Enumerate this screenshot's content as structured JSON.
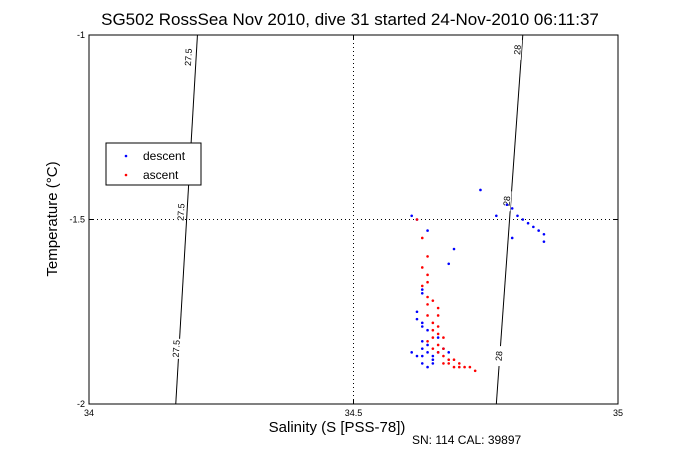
{
  "chart_data": {
    "type": "scatter",
    "title": "SG502 RossSea Nov 2010, dive 31 started 24-Nov-2010 06:11:37",
    "xlabel": "Salinity (S [PSS-78])",
    "ylabel": "Temperature (°C)",
    "xlim": [
      34,
      35
    ],
    "ylim": [
      -2,
      -1
    ],
    "x_ticks": [
      34,
      34.5,
      35
    ],
    "y_ticks": [
      -2,
      -1.5,
      -1
    ],
    "x_tick_labels": [
      "34",
      "34.5",
      "35"
    ],
    "y_tick_labels": [
      "-2",
      "-1.5",
      "-1"
    ],
    "grid": "dotted at 34.5 and -1.5",
    "legend_position": "upper-left",
    "density_contours": [
      {
        "label": "27.5",
        "points": [
          [
            34.205,
            -1
          ],
          [
            34.164,
            -2
          ]
        ],
        "label_at": [
          [
            34.188,
            -1.06
          ],
          [
            34.174,
            -1.48
          ],
          [
            34.165,
            -1.85
          ]
        ]
      },
      {
        "label": "28",
        "points": [
          [
            34.82,
            -1
          ],
          [
            34.77,
            -2
          ]
        ],
        "label_at": [
          [
            34.81,
            -1.04
          ],
          [
            34.79,
            -1.45
          ],
          [
            34.775,
            -1.87
          ]
        ]
      }
    ],
    "series": [
      {
        "name": "descent",
        "color": "#0000ff",
        "points": [
          [
            34.74,
            -1.42
          ],
          [
            34.79,
            -1.46
          ],
          [
            34.8,
            -1.47
          ],
          [
            34.81,
            -1.49
          ],
          [
            34.82,
            -1.5
          ],
          [
            34.83,
            -1.51
          ],
          [
            34.84,
            -1.52
          ],
          [
            34.85,
            -1.53
          ],
          [
            34.86,
            -1.54
          ],
          [
            34.86,
            -1.56
          ],
          [
            34.8,
            -1.55
          ],
          [
            34.77,
            -1.49
          ],
          [
            34.69,
            -1.58
          ],
          [
            34.68,
            -1.62
          ],
          [
            34.61,
            -1.49
          ],
          [
            34.62,
            -1.5
          ],
          [
            34.64,
            -1.53
          ],
          [
            34.63,
            -1.69
          ],
          [
            34.63,
            -1.7
          ],
          [
            34.62,
            -1.75
          ],
          [
            34.62,
            -1.77
          ],
          [
            34.63,
            -1.78
          ],
          [
            34.63,
            -1.79
          ],
          [
            34.64,
            -1.8
          ],
          [
            34.66,
            -1.82
          ],
          [
            34.64,
            -1.84
          ],
          [
            34.63,
            -1.85
          ],
          [
            34.64,
            -1.86
          ],
          [
            34.63,
            -1.87
          ],
          [
            34.65,
            -1.87
          ],
          [
            34.66,
            -1.86
          ],
          [
            34.63,
            -1.89
          ],
          [
            34.64,
            -1.9
          ],
          [
            34.65,
            -1.88
          ],
          [
            34.67,
            -1.85
          ],
          [
            34.68,
            -1.86
          ],
          [
            34.62,
            -1.87
          ],
          [
            34.63,
            -1.83
          ],
          [
            34.65,
            -1.89
          ],
          [
            34.61,
            -1.86
          ]
        ]
      },
      {
        "name": "ascent",
        "color": "#ff0000",
        "points": [
          [
            34.62,
            -1.5
          ],
          [
            34.63,
            -1.55
          ],
          [
            34.64,
            -1.6
          ],
          [
            34.63,
            -1.63
          ],
          [
            34.64,
            -1.65
          ],
          [
            34.64,
            -1.67
          ],
          [
            34.63,
            -1.68
          ],
          [
            34.64,
            -1.71
          ],
          [
            34.65,
            -1.72
          ],
          [
            34.64,
            -1.73
          ],
          [
            34.66,
            -1.74
          ],
          [
            34.64,
            -1.76
          ],
          [
            34.65,
            -1.78
          ],
          [
            34.66,
            -1.79
          ],
          [
            34.65,
            -1.8
          ],
          [
            34.66,
            -1.81
          ],
          [
            34.67,
            -1.82
          ],
          [
            34.65,
            -1.82
          ],
          [
            34.66,
            -1.84
          ],
          [
            34.67,
            -1.85
          ],
          [
            34.66,
            -1.86
          ],
          [
            34.67,
            -1.87
          ],
          [
            34.68,
            -1.88
          ],
          [
            34.69,
            -1.88
          ],
          [
            34.7,
            -1.89
          ],
          [
            34.71,
            -1.9
          ],
          [
            34.72,
            -1.9
          ],
          [
            34.68,
            -1.89
          ],
          [
            34.67,
            -1.89
          ],
          [
            34.69,
            -1.9
          ],
          [
            34.7,
            -1.9
          ],
          [
            34.73,
            -1.91
          ],
          [
            34.64,
            -1.83
          ],
          [
            34.65,
            -1.85
          ],
          [
            34.66,
            -1.76
          ]
        ]
      }
    ]
  },
  "footer": {
    "sn_text": "SN: 114  CAL: 39897"
  }
}
